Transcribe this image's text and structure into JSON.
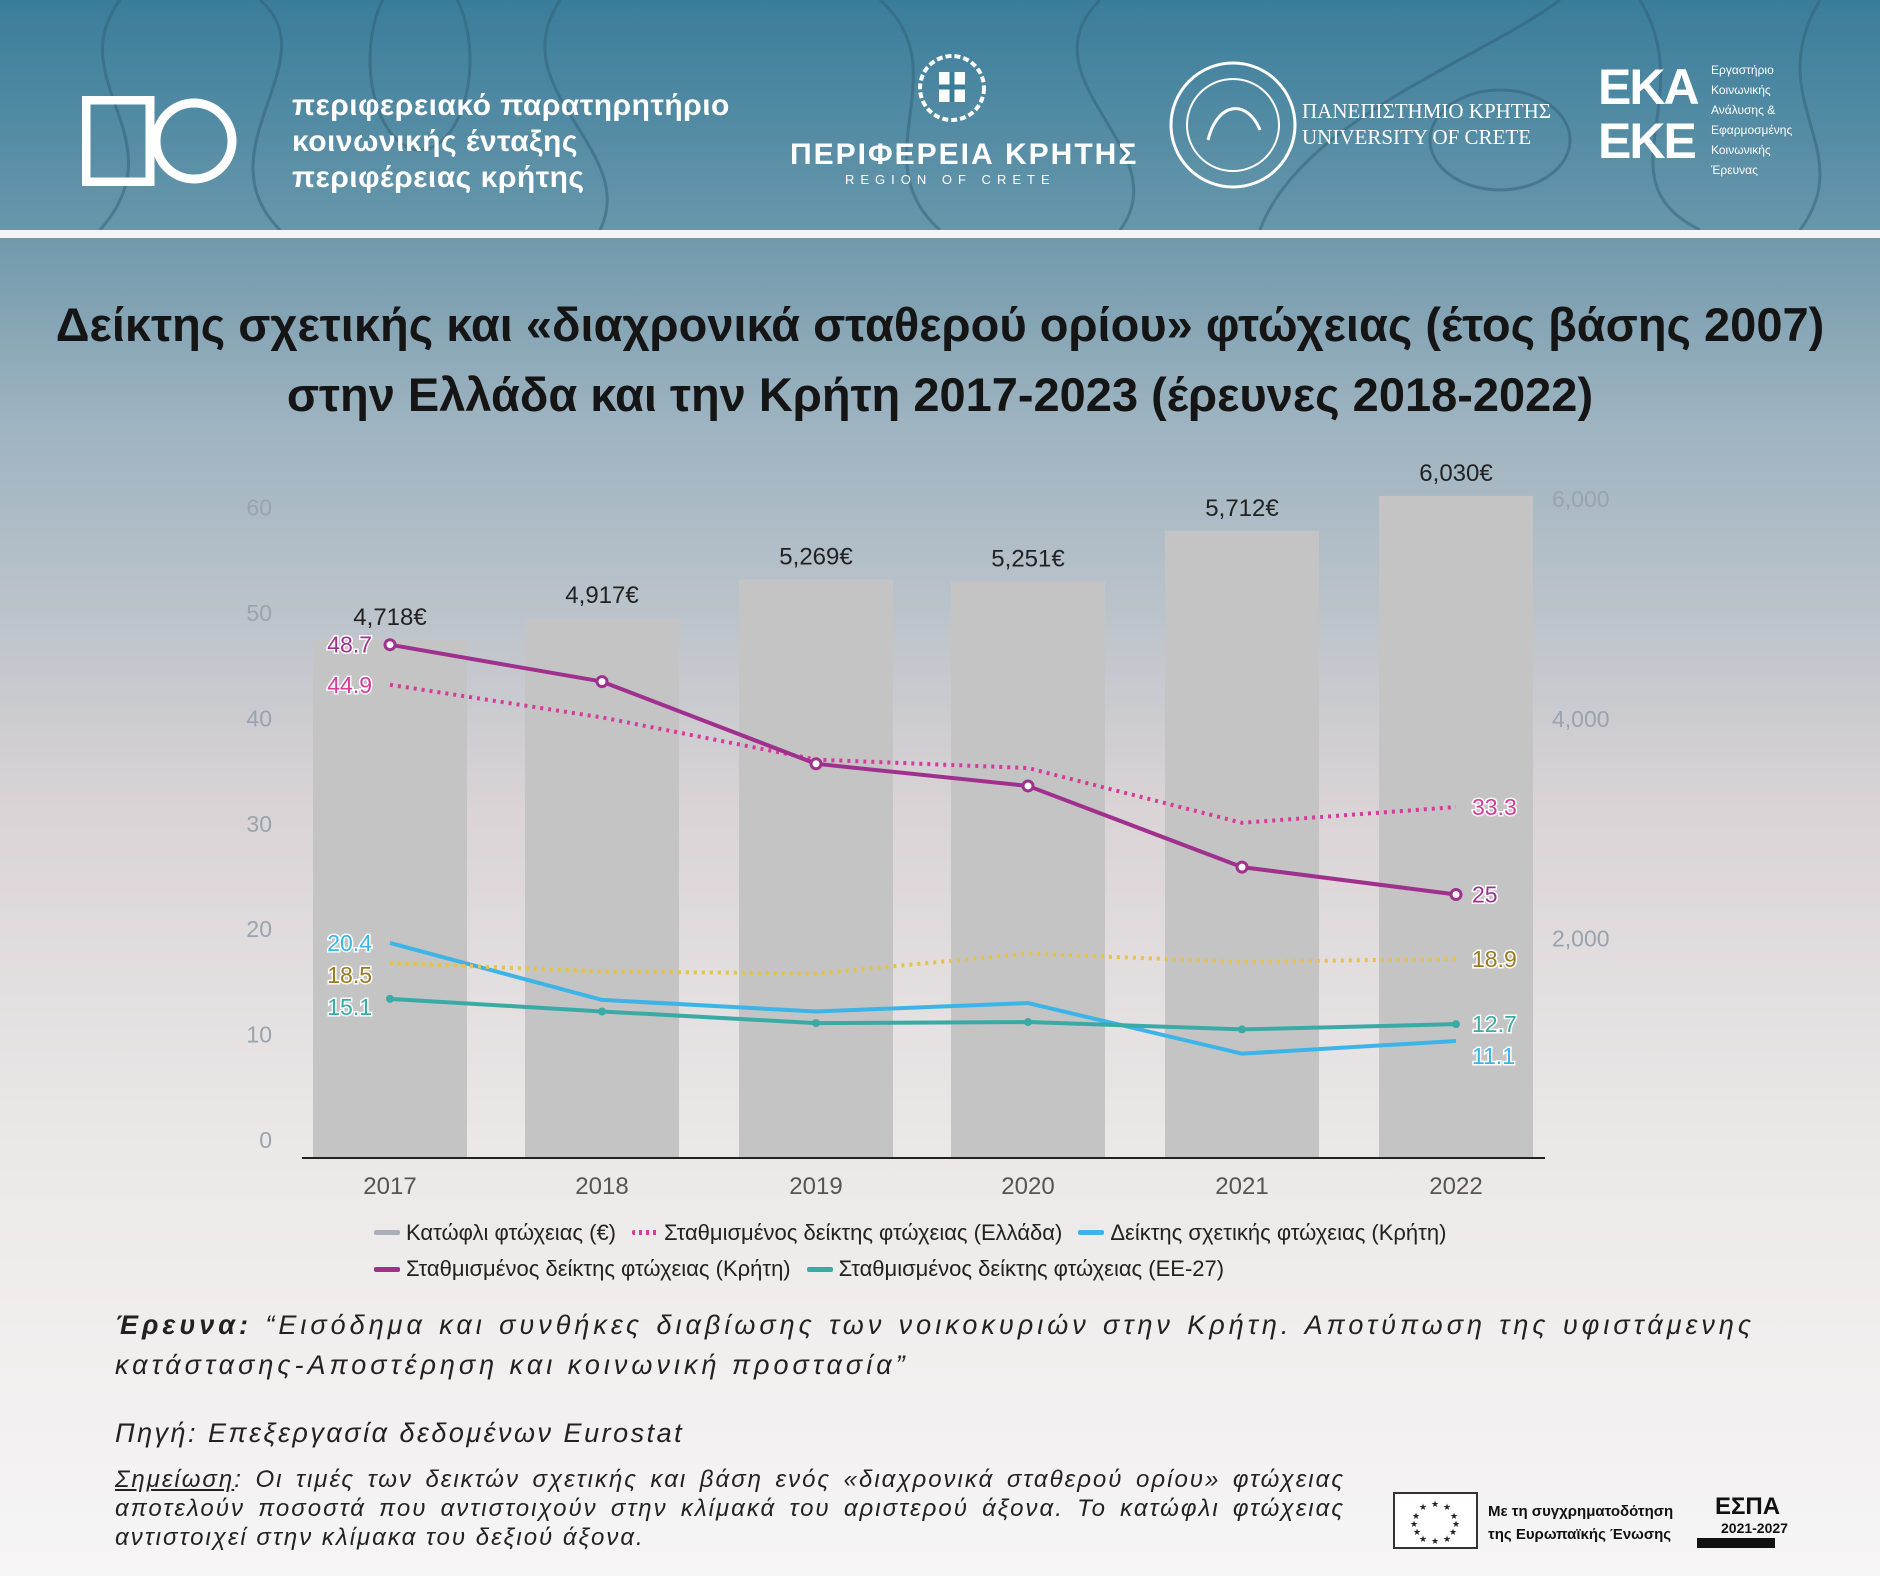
{
  "header": {
    "observatory": [
      "περιφερειακό παρατηρητήριο",
      "κοινωνικής ένταξης",
      "περιφέρειας κρήτης"
    ],
    "region": "ΠΕΡΙΦΕΡΕΙΑ ΚΡΗΤΗΣ",
    "region_sub": "REGION OF CRETE",
    "university": [
      "ΠΑΝΕΠΙΣΤΗΜΙΟ ΚΡΗΤΗΣ",
      "UNIVERSITY OF CRETE"
    ],
    "eka": [
      "ΕΚΑ",
      "ΕΚΕ"
    ],
    "eka_sub": [
      "Εργαστήριο",
      "Κοινωνικής",
      "Ανάλυσης &",
      "Εφαρμοσμένης",
      "Κοινωνικής",
      "Έρευνας"
    ]
  },
  "chart_data": {
    "type": "bar+line",
    "title": "Δείκτης σχετικής και «διαχρονικά σταθερού ορίου» φτώχειας (έτος βάσης 2007) στην Ελλάδα και την Κρήτη 2017-2023 (έρευνες 2018-2022)",
    "categories": [
      "2017",
      "2018",
      "2019",
      "2020",
      "2021",
      "2022"
    ],
    "ylim_left": [
      0,
      60
    ],
    "yticks_left": [
      "0",
      "10",
      "20",
      "30",
      "40",
      "50",
      "60"
    ],
    "ylim_right": [
      0,
      6000
    ],
    "yticks_right": [
      "2,000",
      "4,000",
      "6,000"
    ],
    "bars": {
      "name": "Κατώφλι φτώχειας (€)",
      "values": [
        4718,
        4917,
        5269,
        5251,
        5712,
        6030
      ],
      "labels": [
        "4,718€",
        "4,917€",
        "5,269€",
        "5,251€",
        "5,712€",
        "6,030€"
      ],
      "color": "#c4c4c4"
    },
    "series": [
      {
        "name": "Σταθμισμένος δείκτης φτώχειας (Ελλάδα)",
        "values": [
          44.9,
          41.8,
          37.8,
          37.0,
          31.8,
          33.3
        ],
        "color": "#d63a9a",
        "style": "dotted",
        "labels": [
          "44.9",
          "33.3"
        ]
      },
      {
        "name": "Δείκτης σχετικής φτώχειας (Κρήτη)",
        "values": [
          20.4,
          15.0,
          13.9,
          14.7,
          9.9,
          11.1
        ],
        "color": "#3cb4e8",
        "style": "solid",
        "labels": [
          "20.4",
          "11.1"
        ]
      },
      {
        "name": "",
        "values": [
          18.5,
          17.7,
          17.5,
          19.4,
          18.6,
          18.9
        ],
        "color": "#e8c04a",
        "style": "dotted",
        "labels": [
          "18.5",
          "18.9"
        ],
        "label_color": "#9a7a20"
      },
      {
        "name": "Σταθμισμένος δείκτης φτώχειας (Κρήτη)",
        "values": [
          48.7,
          45.2,
          37.4,
          35.3,
          27.6,
          25
        ],
        "color": "#a0308e",
        "style": "solid-marker",
        "labels": [
          "48.7",
          "25"
        ]
      },
      {
        "name": "Σταθμισμένος δείκτης φτώχειας (ΕΕ-27)",
        "values": [
          15.1,
          13.9,
          12.8,
          12.9,
          12.2,
          12.7
        ],
        "color": "#3aaaa4",
        "style": "solid-dot",
        "labels": [
          "15.1",
          "12.7"
        ]
      }
    ],
    "legend": "bottom"
  },
  "footer": {
    "research_label": "Έρευνα:",
    "research_text": " “Εισόδημα και συνθήκες διαβίωσης των νοικοκυριών στην Κρήτη. Αποτύπωση της υφιστάμενης κατάστασης-Αποστέρηση και κοινωνική προστασία”",
    "source": "Πηγή: Επεξεργασία δεδομένων Eurostat",
    "note_label": "Σημείωση",
    "note_text": ": Οι τιμές των δεικτών σχετικής και βάση ενός «διαχρονικά σταθερού ορίου» φτώχειας αποτελούν ποσοστά που αντιστοιχούν στην κλίμακά του αριστερού άξονα. Το κατώφλι φτώχειας αντιστοιχεί στην κλίμακα του δεξιού άξονα.",
    "eu": [
      "Με τη συγχρηματοδότηση",
      "της Ευρωπαϊκής Ένωσης"
    ],
    "espa": "ΕΣΠΑ",
    "espa_years": "2021-2027"
  }
}
